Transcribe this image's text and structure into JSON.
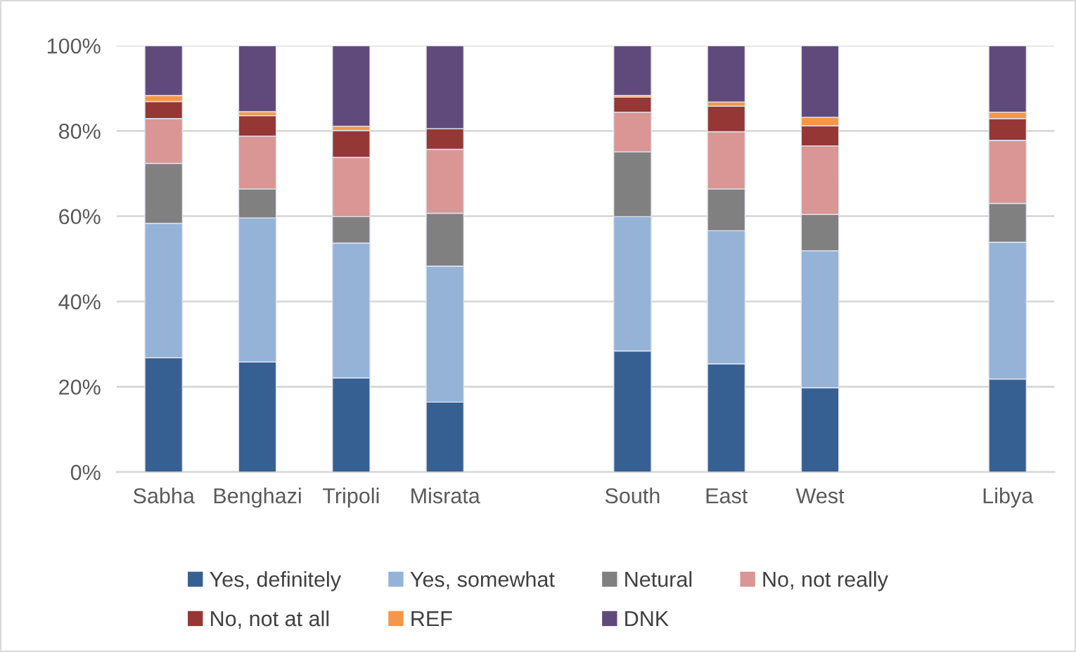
{
  "chart_data": {
    "type": "bar",
    "stacked": true,
    "categories": [
      "Sabha",
      "Benghazi",
      "Tripoli",
      "Misrata",
      null,
      "South",
      "East",
      "West",
      null,
      "Libya"
    ],
    "series": [
      {
        "name": "Yes, definitely",
        "color": "#376092",
        "values": [
          26.8,
          25.8,
          22.1,
          16.4,
          null,
          28.4,
          25.4,
          19.8,
          null,
          21.8
        ]
      },
      {
        "name": "Yes, somewhat",
        "color": "#95b3d7",
        "values": [
          31.5,
          33.8,
          31.6,
          31.9,
          null,
          31.5,
          31.2,
          32.1,
          null,
          32.1
        ]
      },
      {
        "name": "Netural",
        "color": "#808080",
        "values": [
          14.1,
          6.8,
          6.2,
          12.4,
          null,
          15.2,
          9.8,
          8.5,
          null,
          9.1
        ]
      },
      {
        "name": "No, not really",
        "color": "#d99694",
        "values": [
          10.5,
          12.4,
          13.9,
          15.0,
          null,
          9.3,
          13.4,
          16.1,
          null,
          14.8
        ]
      },
      {
        "name": "No, not at all",
        "color": "#953735",
        "values": [
          4.0,
          4.8,
          6.3,
          4.8,
          null,
          3.5,
          6.0,
          4.7,
          null,
          5.1
        ]
      },
      {
        "name": "REF",
        "color": "#f79646",
        "values": [
          1.4,
          0.9,
          1.0,
          0,
          null,
          0.4,
          1.0,
          2.0,
          null,
          1.5
        ]
      },
      {
        "name": "DNK",
        "color": "#604a7b",
        "values": [
          11.7,
          15.5,
          18.9,
          19.5,
          null,
          11.7,
          13.2,
          16.8,
          null,
          15.6
        ]
      }
    ],
    "ylim": [
      0,
      100
    ],
    "yticks": [
      {
        "value": 0,
        "label": "0%"
      },
      {
        "value": 20,
        "label": "20%"
      },
      {
        "value": 40,
        "label": "40%"
      },
      {
        "value": 60,
        "label": "60%"
      },
      {
        "value": 80,
        "label": "80%"
      },
      {
        "value": 100,
        "label": "100%"
      }
    ],
    "grid": "y",
    "legend": "bottom"
  }
}
